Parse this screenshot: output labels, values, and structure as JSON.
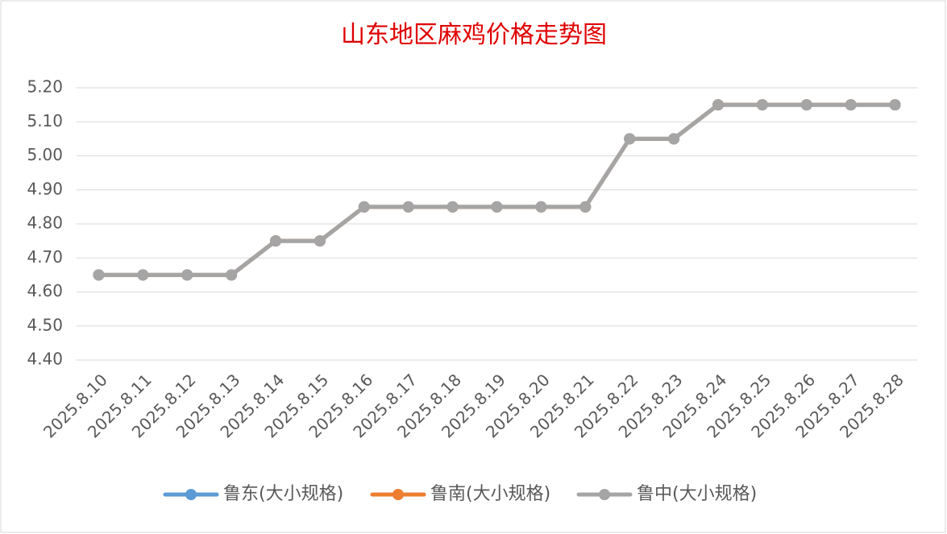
{
  "chart_data": {
    "type": "line",
    "title": "山东地区麻鸡价格走势图",
    "categories": [
      "2025.8.10",
      "2025.8.11",
      "2025.8.12",
      "2025.8.13",
      "2025.8.14",
      "2025.8.15",
      "2025.8.16",
      "2025.8.17",
      "2025.8.18",
      "2025.8.19",
      "2025.8.20",
      "2025.8.21",
      "2025.8.22",
      "2025.8.23",
      "2025.8.24",
      "2025.8.25",
      "2025.8.26",
      "2025.8.27",
      "2025.8.28"
    ],
    "series": [
      {
        "name": "鲁东(大小规格)",
        "color": "#5b9bd5",
        "values": [
          4.65,
          4.65,
          4.65,
          4.65,
          4.75,
          4.75,
          4.85,
          4.85,
          4.85,
          4.85,
          4.85,
          4.85,
          5.05,
          5.05,
          5.15,
          5.15,
          5.15,
          5.15,
          5.15
        ]
      },
      {
        "name": "鲁南(大小规格)",
        "color": "#ed7d31",
        "values": [
          4.65,
          4.65,
          4.65,
          4.65,
          4.75,
          4.75,
          4.85,
          4.85,
          4.85,
          4.85,
          4.85,
          4.85,
          5.05,
          5.05,
          5.15,
          5.15,
          5.15,
          5.15,
          5.15
        ]
      },
      {
        "name": "鲁中(大小规格)",
        "color": "#a5a5a5",
        "values": [
          4.65,
          4.65,
          4.65,
          4.65,
          4.75,
          4.75,
          4.85,
          4.85,
          4.85,
          4.85,
          4.85,
          4.85,
          5.05,
          5.05,
          5.15,
          5.15,
          5.15,
          5.15,
          5.15
        ]
      }
    ],
    "ylim": [
      4.4,
      5.2
    ],
    "yticks": [
      {
        "value": 4.4,
        "label": "4.40"
      },
      {
        "value": 4.5,
        "label": "4.50"
      },
      {
        "value": 4.6,
        "label": "4.60"
      },
      {
        "value": 4.7,
        "label": "4.70"
      },
      {
        "value": 4.8,
        "label": "4.80"
      },
      {
        "value": 4.9,
        "label": "4.90"
      },
      {
        "value": 5.0,
        "label": "5.00"
      },
      {
        "value": 5.1,
        "label": "5.10"
      },
      {
        "value": 5.2,
        "label": "5.20"
      }
    ],
    "grid": true,
    "legend": "bottom"
  }
}
